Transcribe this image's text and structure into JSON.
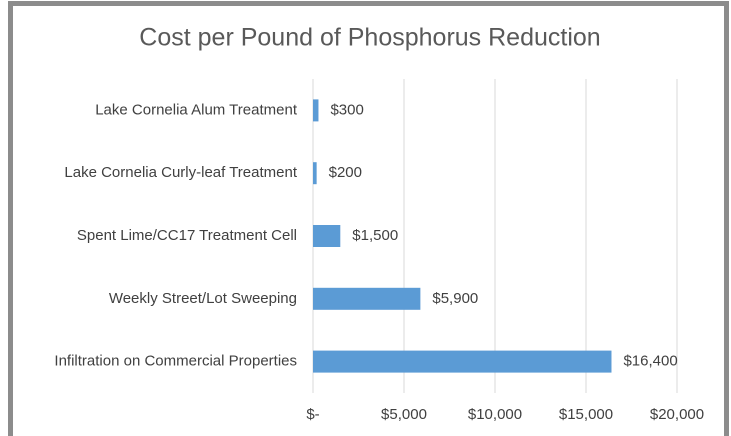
{
  "chart_data": {
    "type": "bar",
    "orientation": "horizontal",
    "title": "Cost per Pound of Phosphorus Reduction",
    "categories": [
      "Lake Cornelia Alum Treatment",
      "Lake Cornelia Curly-leaf Treatment",
      "Spent Lime/CC17 Treatment Cell",
      "Weekly Street/Lot Sweeping",
      "Infiltration on Commercial Properties"
    ],
    "values": [
      300,
      200,
      1500,
      5900,
      16400
    ],
    "value_labels": [
      "$300",
      "$200",
      "$1,500",
      "$5,900",
      "$16,400"
    ],
    "color": "#5b9bd5",
    "xlim": [
      0,
      20000
    ],
    "xticks": [
      {
        "value": 0,
        "label": "$-"
      },
      {
        "value": 5000,
        "label": "$5,000"
      },
      {
        "value": 10000,
        "label": "$10,000"
      },
      {
        "value": 15000,
        "label": "$15,000"
      },
      {
        "value": 20000,
        "label": "$20,000"
      }
    ],
    "grid": true
  }
}
